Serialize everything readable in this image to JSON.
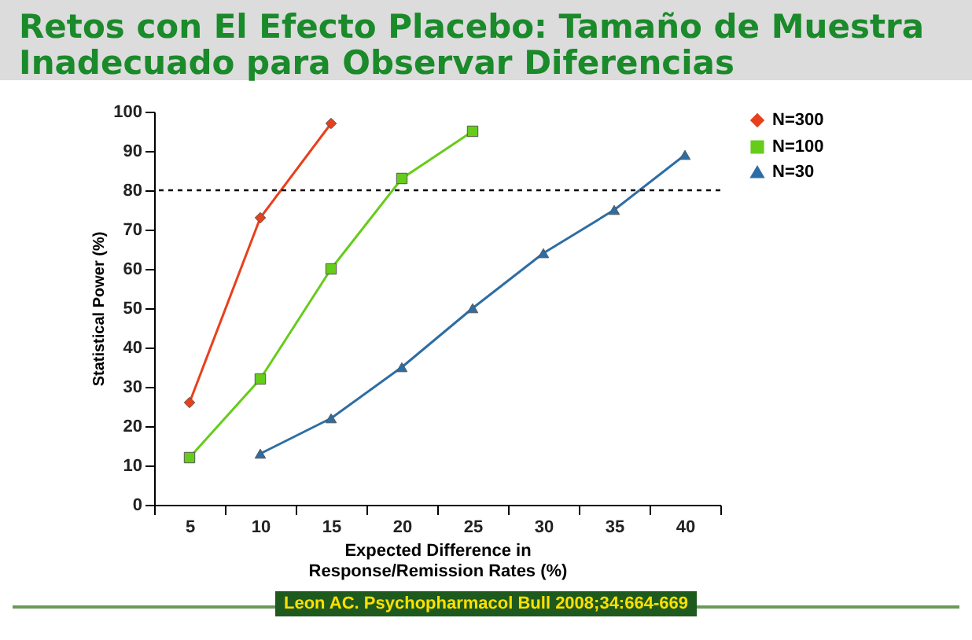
{
  "chart_data": {
    "type": "line",
    "title": "Retos con El Efecto Placebo: Tamaño de Muestra Inadecuado para Observar Diferencias",
    "xlabel": "Expected Difference in Response/Remission Rates (%)",
    "ylabel": "Statistical Power (%)",
    "categories": [
      "5",
      "10",
      "15",
      "20",
      "25",
      "30",
      "35",
      "40"
    ],
    "series": [
      {
        "name": "N=300",
        "color": "#e8401c",
        "marker": "diamond",
        "values": [
          26,
          73,
          97,
          null,
          null,
          null,
          null,
          null
        ]
      },
      {
        "name": "N=100",
        "color": "#66cc1a",
        "marker": "square",
        "values": [
          12,
          32,
          60,
          83,
          95,
          null,
          null,
          null
        ]
      },
      {
        "name": "N=30",
        "color": "#2e6da4",
        "marker": "triangle",
        "values": [
          null,
          13,
          22,
          35,
          50,
          64,
          75,
          89
        ]
      }
    ],
    "ylim": [
      0,
      100
    ],
    "yticks": [
      0,
      10,
      20,
      30,
      40,
      50,
      60,
      70,
      80,
      90,
      100
    ],
    "grid": false,
    "legend": "right",
    "ref_lines": [
      {
        "axis": "y",
        "value": 80,
        "line_style": "dashed",
        "color": "#000000"
      }
    ],
    "annotations": [
      "Leon AC. Psychopharmacol Bull 2008;34:664-669"
    ]
  }
}
